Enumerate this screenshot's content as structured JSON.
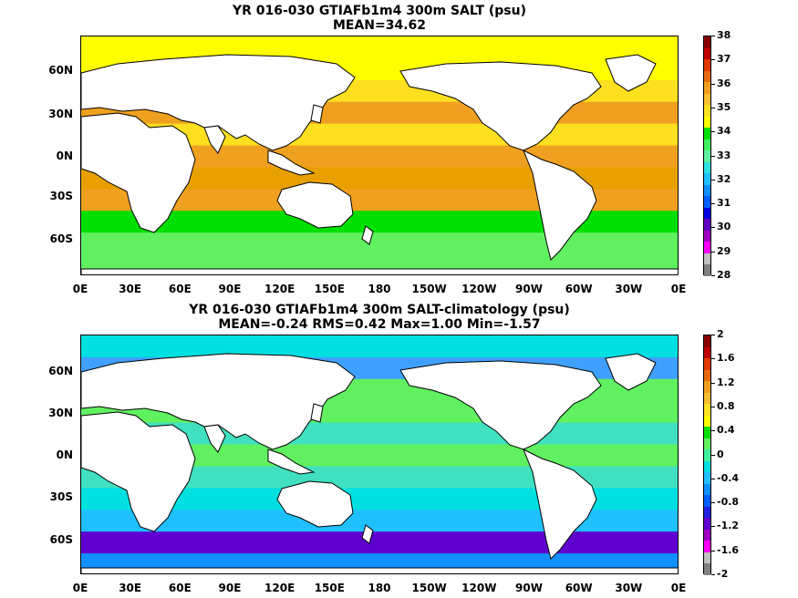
{
  "panels": [
    {
      "title_line1": "YR 016-030 GTIAFb1m4 300m SALT (psu)",
      "title_line2": "MEAN=34.62",
      "colorbar": {
        "labels": [
          "38",
          "37",
          "36",
          "35",
          "34",
          "33",
          "32",
          "31",
          "30",
          "29",
          "28"
        ],
        "colors": [
          "#8a0000",
          "#c00000",
          "#e03a00",
          "#e86a10",
          "#f0a020",
          "#f8c030",
          "#ffe020",
          "#ffff00",
          "#00e000",
          "#40f060",
          "#60f0a0",
          "#30e0e0",
          "#20c0ff",
          "#1090ff",
          "#0060ff",
          "#0000e0",
          "#6000c0",
          "#a000c0",
          "#ff00ff",
          "#c0c0c0",
          "#808080"
        ]
      },
      "bands": [
        "#ffff00",
        "#ffff00",
        "#ffe020",
        "#f0a020",
        "#ffe020",
        "#f0a020",
        "#e8a000",
        "#f0a020",
        "#00e000",
        "#60f060",
        "#60f060"
      ]
    },
    {
      "title_line1": "YR 016-030 GTIAFb1m4 300m SALT-climatology (psu)",
      "title_line2": "MEAN=-0.24   RMS=0.42   Max=1.00   Min=-1.57",
      "colorbar": {
        "labels": [
          "2",
          "1.6",
          "1.2",
          "0.8",
          "0.4",
          "0",
          "-0.4",
          "-0.8",
          "-1.2",
          "-1.6",
          "-2"
        ],
        "colors": [
          "#8a0000",
          "#c00000",
          "#e03a00",
          "#e86a10",
          "#f0a020",
          "#f8c030",
          "#ffe020",
          "#ffff00",
          "#00e000",
          "#60f060",
          "#40f0a0",
          "#00e0e0",
          "#20c0ff",
          "#1090ff",
          "#0060ff",
          "#2020e0",
          "#6000d0",
          "#a000c0",
          "#ff00ff",
          "#c0c0c0",
          "#808080"
        ]
      },
      "bands": [
        "#00e0e0",
        "#40a0ff",
        "#60f060",
        "#60f060",
        "#40e0c0",
        "#60f060",
        "#40e0c0",
        "#00e0e0",
        "#20c0ff",
        "#6000d0",
        "#1090ff"
      ]
    }
  ],
  "lat_labels": [
    "60N",
    "30N",
    "0N",
    "30S",
    "60S"
  ],
  "lon_labels": [
    "0E",
    "30E",
    "60E",
    "90E",
    "120E",
    "150E",
    "180",
    "150W",
    "120W",
    "90W",
    "60W",
    "30W",
    "0E"
  ]
}
